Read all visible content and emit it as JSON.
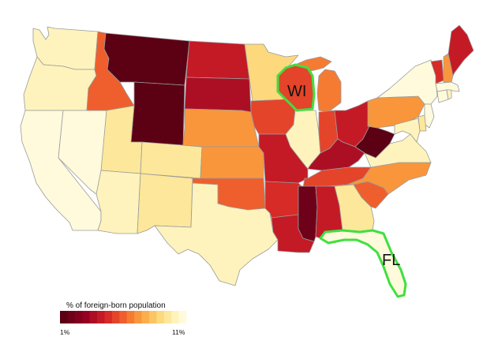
{
  "map": {
    "legend": {
      "title": "% of foreign-born population",
      "min_label": "1%",
      "max_label": "11%",
      "colors": [
        "#5c0014",
        "#6e0019",
        "#80001e",
        "#960022",
        "#ac0f24",
        "#c41a26",
        "#d62b26",
        "#e4442a",
        "#ee5f2d",
        "#f57b33",
        "#f9963c",
        "#fbae4c",
        "#fcc462",
        "#fdd87c",
        "#fde79a",
        "#fef3bc",
        "#fffadc"
      ]
    },
    "highlights": [
      {
        "id": "WI",
        "label": "WI",
        "outline_color": "#3fe03f"
      },
      {
        "id": "FL",
        "label": "FL",
        "outline_color": "#3fe03f"
      }
    ],
    "states": [
      {
        "id": "WA",
        "color": "#fef3bc"
      },
      {
        "id": "OR",
        "color": "#fef3bc"
      },
      {
        "id": "CA",
        "color": "#fffadc"
      },
      {
        "id": "NV",
        "color": "#fffadc"
      },
      {
        "id": "ID",
        "color": "#ee5f2d"
      },
      {
        "id": "MT",
        "color": "#5c0014"
      },
      {
        "id": "WY",
        "color": "#5c0014"
      },
      {
        "id": "UT",
        "color": "#fde79a"
      },
      {
        "id": "AZ",
        "color": "#fef3bc"
      },
      {
        "id": "CO",
        "color": "#fde79a"
      },
      {
        "id": "NM",
        "color": "#fde79a"
      },
      {
        "id": "ND",
        "color": "#c41a26"
      },
      {
        "id": "SD",
        "color": "#ac0f24"
      },
      {
        "id": "NE",
        "color": "#f9963c"
      },
      {
        "id": "KS",
        "color": "#f9963c"
      },
      {
        "id": "OK",
        "color": "#ee5f2d"
      },
      {
        "id": "TX",
        "color": "#fef3bc"
      },
      {
        "id": "MN",
        "color": "#fdd87c"
      },
      {
        "id": "IA",
        "color": "#e4442a"
      },
      {
        "id": "MO",
        "color": "#c41a26"
      },
      {
        "id": "AR",
        "color": "#d62b26"
      },
      {
        "id": "LA",
        "color": "#c41a26"
      },
      {
        "id": "WI",
        "color": "#e4442a"
      },
      {
        "id": "IL",
        "color": "#fef3bc"
      },
      {
        "id": "MI",
        "color": "#f57b33"
      },
      {
        "id": "IN",
        "color": "#e4442a"
      },
      {
        "id": "OH",
        "color": "#c41a26"
      },
      {
        "id": "KY",
        "color": "#ac0f24"
      },
      {
        "id": "TN",
        "color": "#e4442a"
      },
      {
        "id": "MS",
        "color": "#6e0019"
      },
      {
        "id": "AL",
        "color": "#c41a26"
      },
      {
        "id": "GA",
        "color": "#fde79a"
      },
      {
        "id": "FL",
        "color": "#fffadc"
      },
      {
        "id": "SC",
        "color": "#ee5f2d"
      },
      {
        "id": "NC",
        "color": "#f9963c"
      },
      {
        "id": "VA",
        "color": "#fef3bc"
      },
      {
        "id": "WV",
        "color": "#5c0014"
      },
      {
        "id": "PA",
        "color": "#f9963c"
      },
      {
        "id": "NY",
        "color": "#fffadc"
      },
      {
        "id": "VT",
        "color": "#d62b26"
      },
      {
        "id": "NH",
        "color": "#f9963c"
      },
      {
        "id": "ME",
        "color": "#c41a26"
      },
      {
        "id": "MA",
        "color": "#fffadc"
      },
      {
        "id": "CT",
        "color": "#fffadc"
      },
      {
        "id": "RI",
        "color": "#fef3bc"
      },
      {
        "id": "NJ",
        "color": "#fffadc"
      },
      {
        "id": "DE",
        "color": "#fde79a"
      },
      {
        "id": "MD",
        "color": "#fef3bc"
      }
    ]
  }
}
